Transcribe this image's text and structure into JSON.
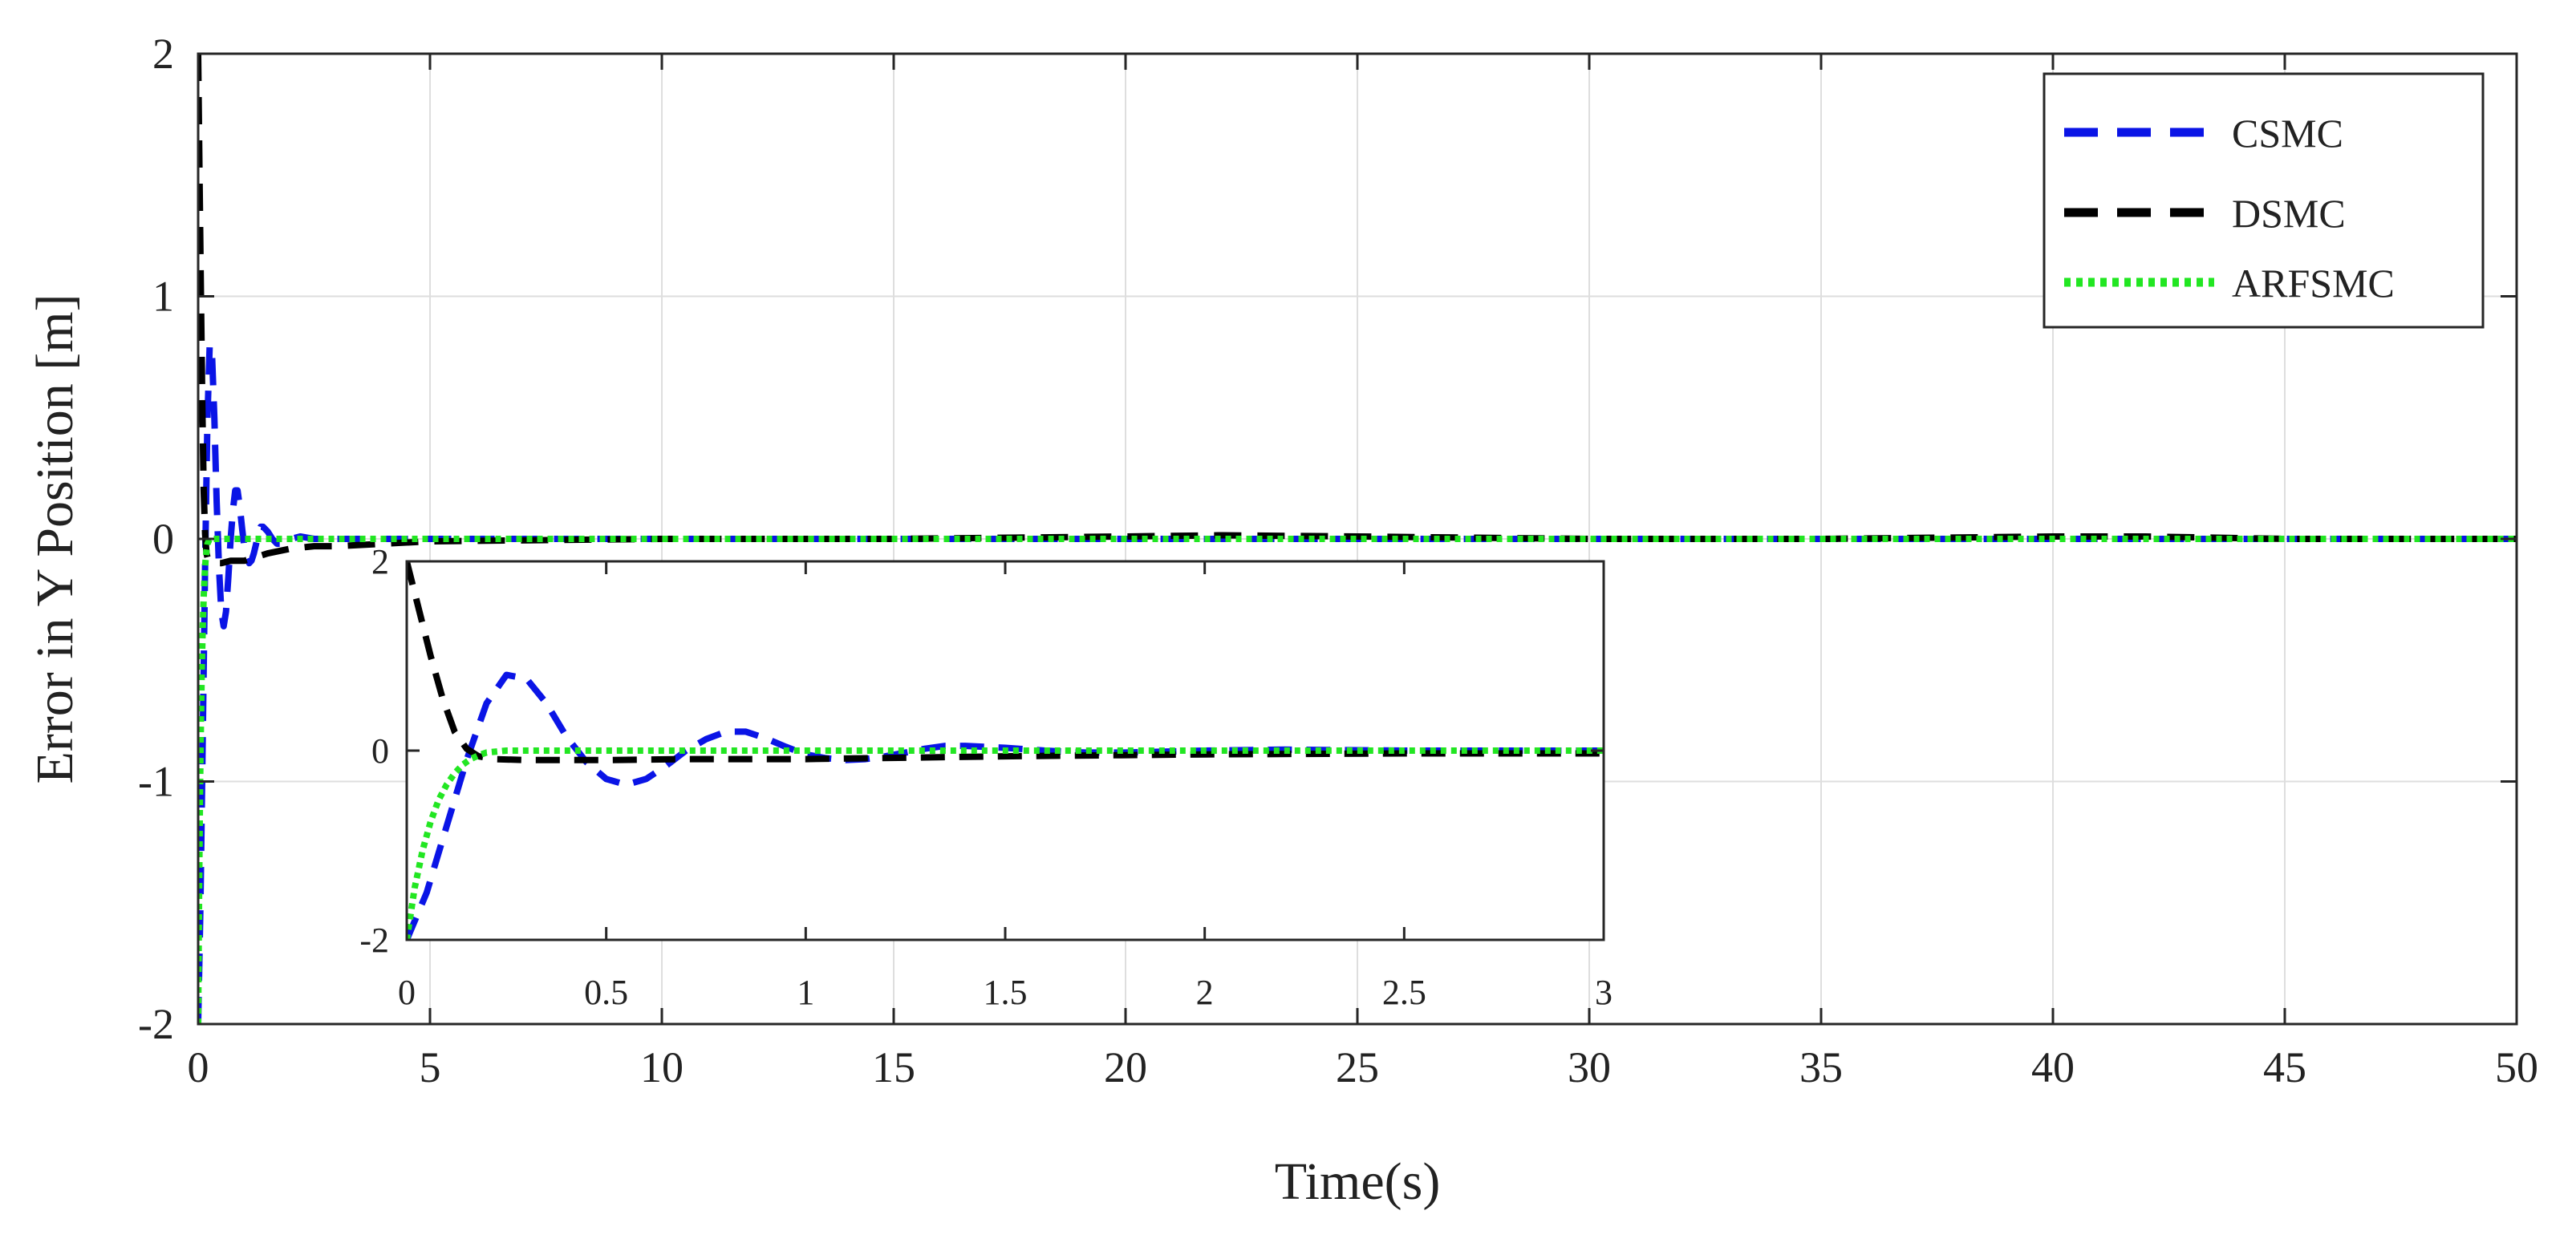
{
  "chart_data": {
    "type": "line",
    "title": "",
    "xlabel": "Time(s)",
    "ylabel": "Error in Y Position [m]",
    "xlim": [
      0,
      50
    ],
    "ylim": [
      -2,
      2
    ],
    "xticks": [
      0,
      5,
      10,
      15,
      20,
      25,
      30,
      35,
      40,
      45,
      50
    ],
    "yticks": [
      -2,
      -1,
      0,
      1,
      2
    ],
    "grid": true,
    "legend_position": "top-right",
    "series": [
      {
        "name": "CSMC",
        "color": "#0a14e6",
        "style": "dashed",
        "points": [
          [
            0,
            -2
          ],
          [
            0.05,
            -1.5
          ],
          [
            0.1,
            -0.8
          ],
          [
            0.15,
            -0.1
          ],
          [
            0.2,
            0.5
          ],
          [
            0.25,
            0.8
          ],
          [
            0.3,
            0.76
          ],
          [
            0.35,
            0.5
          ],
          [
            0.4,
            0.15
          ],
          [
            0.45,
            -0.12
          ],
          [
            0.5,
            -0.3
          ],
          [
            0.55,
            -0.36
          ],
          [
            0.6,
            -0.3
          ],
          [
            0.65,
            -0.16
          ],
          [
            0.7,
            0.0
          ],
          [
            0.75,
            0.12
          ],
          [
            0.8,
            0.2
          ],
          [
            0.85,
            0.2
          ],
          [
            0.9,
            0.13
          ],
          [
            0.95,
            0.04
          ],
          [
            1.0,
            -0.04
          ],
          [
            1.05,
            -0.08
          ],
          [
            1.1,
            -0.1
          ],
          [
            1.15,
            -0.09
          ],
          [
            1.2,
            -0.06
          ],
          [
            1.25,
            -0.02
          ],
          [
            1.3,
            0.02
          ],
          [
            1.35,
            0.05
          ],
          [
            1.4,
            0.05
          ],
          [
            1.5,
            0.03
          ],
          [
            1.6,
            0.0
          ],
          [
            1.7,
            -0.02
          ],
          [
            1.8,
            -0.02
          ],
          [
            1.9,
            -0.01
          ],
          [
            2.0,
            0.0
          ],
          [
            2.2,
            0.01
          ],
          [
            2.5,
            0.0
          ],
          [
            3.0,
            0.0
          ],
          [
            5,
            0
          ],
          [
            10,
            0
          ],
          [
            15,
            0
          ],
          [
            20,
            0
          ],
          [
            25,
            0
          ],
          [
            30,
            0
          ],
          [
            35,
            0
          ],
          [
            40,
            0
          ],
          [
            45,
            0
          ],
          [
            50,
            0
          ]
        ]
      },
      {
        "name": "DSMC",
        "color": "#000000",
        "style": "dashed",
        "points": [
          [
            0,
            2
          ],
          [
            0.03,
            1.5
          ],
          [
            0.06,
            1.0
          ],
          [
            0.09,
            0.55
          ],
          [
            0.12,
            0.2
          ],
          [
            0.15,
            0.02
          ],
          [
            0.18,
            -0.06
          ],
          [
            0.22,
            -0.09
          ],
          [
            0.3,
            -0.1
          ],
          [
            0.4,
            -0.1
          ],
          [
            0.5,
            -0.1
          ],
          [
            0.7,
            -0.09
          ],
          [
            1.0,
            -0.09
          ],
          [
            1.5,
            -0.06
          ],
          [
            2.0,
            -0.04
          ],
          [
            2.5,
            -0.03
          ],
          [
            3.0,
            -0.03
          ],
          [
            5,
            -0.01
          ],
          [
            10,
            0
          ],
          [
            15,
            0.0
          ],
          [
            20,
            0.01
          ],
          [
            22,
            0.015
          ],
          [
            25,
            0.01
          ],
          [
            30,
            0.0
          ],
          [
            35,
            0.0
          ],
          [
            40,
            0.01
          ],
          [
            42,
            0.01
          ],
          [
            45,
            0.0
          ],
          [
            50,
            0.0
          ]
        ]
      },
      {
        "name": "ARFSMC",
        "color": "#22e622",
        "style": "dotted",
        "points": [
          [
            0,
            -2
          ],
          [
            0.02,
            -1.45
          ],
          [
            0.04,
            -1.05
          ],
          [
            0.06,
            -0.75
          ],
          [
            0.08,
            -0.52
          ],
          [
            0.1,
            -0.36
          ],
          [
            0.12,
            -0.24
          ],
          [
            0.14,
            -0.15
          ],
          [
            0.16,
            -0.09
          ],
          [
            0.18,
            -0.05
          ],
          [
            0.2,
            -0.02
          ],
          [
            0.25,
            0.0
          ],
          [
            0.3,
            0.0
          ],
          [
            1,
            0
          ],
          [
            3,
            0
          ],
          [
            5,
            0
          ],
          [
            10,
            0
          ],
          [
            15,
            0
          ],
          [
            20,
            0
          ],
          [
            25,
            0
          ],
          [
            30,
            0
          ],
          [
            35,
            0
          ],
          [
            40,
            0
          ],
          [
            45,
            0
          ],
          [
            50,
            0
          ]
        ]
      }
    ],
    "inset": {
      "xlim": [
        0,
        3
      ],
      "ylim": [
        -2,
        2
      ],
      "xticks": [
        0,
        0.5,
        1,
        1.5,
        2,
        2.5,
        3
      ],
      "xtick_labels": [
        "0",
        "0.5",
        "1",
        "1.5",
        "2",
        "2.5",
        "3"
      ],
      "yticks": [
        -2,
        0,
        2
      ]
    }
  }
}
